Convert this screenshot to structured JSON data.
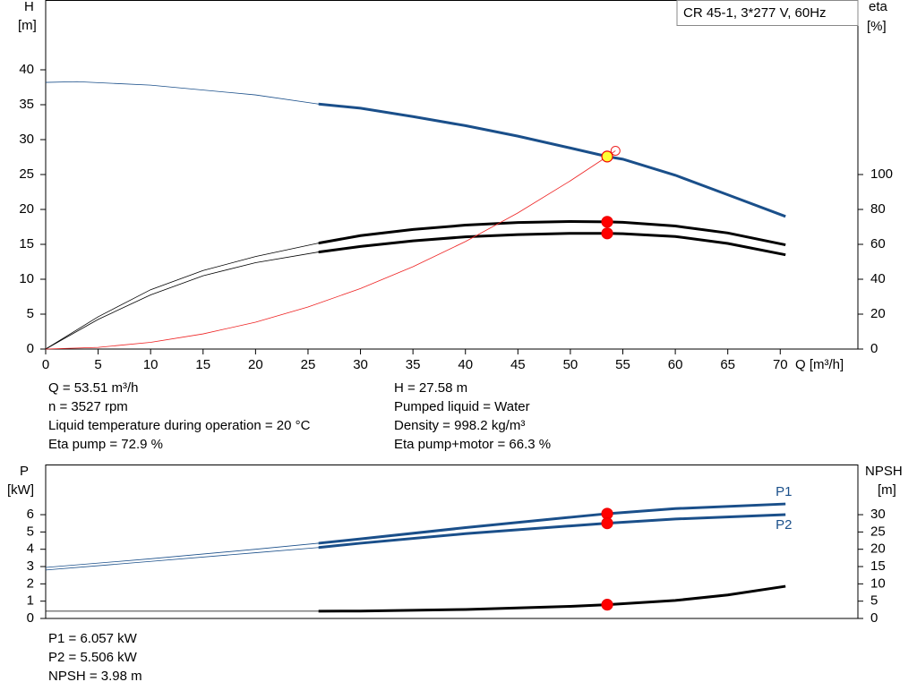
{
  "chart_data": [
    {
      "type": "line",
      "title": "CR 45-1, 3*277 V, 60Hz",
      "x_label": "Q [m³/h]",
      "y_label": [
        "H",
        "[m]"
      ],
      "y2_label": [
        "eta",
        "[%]"
      ],
      "xlim": [
        0,
        77.4
      ],
      "xticks": [
        0,
        5,
        10,
        15,
        20,
        25,
        30,
        35,
        40,
        45,
        50,
        55,
        60,
        65,
        70
      ],
      "ylim": [
        0,
        50
      ],
      "yticks": [
        0,
        5,
        10,
        15,
        20,
        25,
        30,
        35,
        40
      ],
      "y2lim": [
        0,
        200
      ],
      "y2ticks": [
        0,
        20,
        40,
        60,
        80,
        100
      ],
      "operating_range": [
        26,
        70.5
      ],
      "series": [
        {
          "color": "#1a4f8a",
          "x": [
            0,
            3,
            10,
            20,
            26,
            30,
            35,
            40,
            45,
            50,
            53.51,
            55,
            60,
            65,
            70.5
          ],
          "values": [
            38.2,
            38.3,
            37.8,
            36.4,
            35.1,
            34.5,
            33.3,
            32,
            30.5,
            28.8,
            27.58,
            27.2,
            24.9,
            22.1,
            19
          ]
        },
        {
          "color": "#000000",
          "axis": "y2",
          "x": [
            0,
            5,
            10,
            15,
            20,
            26,
            30,
            35,
            40,
            45,
            50,
            53.51,
            55,
            60,
            65,
            70.5
          ],
          "values": [
            0,
            18.5,
            34,
            45,
            53,
            60.7,
            65,
            68.5,
            71,
            72.5,
            73.1,
            72.9,
            72.6,
            70.5,
            66.5,
            59.7
          ]
        },
        {
          "color": "#000000",
          "axis": "y2",
          "x": [
            0,
            5,
            10,
            15,
            20,
            26,
            30,
            35,
            40,
            45,
            50,
            53.51,
            55,
            60,
            65,
            70.5
          ],
          "values": [
            0,
            17,
            31,
            42,
            49.5,
            55.6,
            58.8,
            62,
            64.3,
            65.6,
            66.3,
            66.3,
            66.1,
            64.5,
            60.5,
            54
          ]
        },
        {
          "color": "#ee2222",
          "thin": true,
          "end_marker": true,
          "x": [
            0,
            5,
            10,
            15,
            20,
            25,
            30,
            35,
            40,
            45,
            50,
            53.51,
            54.3
          ],
          "values": [
            0,
            0.24,
            0.96,
            2.17,
            3.85,
            6.02,
            8.67,
            11.8,
            15.4,
            19.5,
            24.1,
            27.58,
            28.4
          ]
        }
      ],
      "points": [
        {
          "x": 53.51,
          "y": 27.58,
          "color": "#ffff33"
        },
        {
          "x": 53.51,
          "y": 72.9,
          "axis": "y2",
          "color": "#ff0000"
        },
        {
          "x": 53.51,
          "y": 66.3,
          "axis": "y2",
          "color": "#ff0000"
        }
      ],
      "notes": [
        [
          "Q = 53.51 m³/h",
          "n = 3527 rpm",
          "Liquid temperature during operation = 20 °C",
          "Eta pump = 72.9 %"
        ],
        [
          "H = 27.58 m",
          "Pumped liquid = Water",
          "Density = 998.2 kg/m³",
          "Eta pump+motor = 66.3 %"
        ]
      ]
    },
    {
      "type": "line",
      "y_label": [
        "P",
        "[kW]"
      ],
      "y2_label": [
        "NPSH",
        "[m]"
      ],
      "xlim": [
        0,
        77.4
      ],
      "ylim": [
        0,
        8.9
      ],
      "yticks": [
        0,
        1,
        2,
        3,
        4,
        5,
        6
      ],
      "y2lim": [
        0,
        44.5
      ],
      "y2ticks": [
        0,
        5,
        10,
        15,
        20,
        25,
        30
      ],
      "operating_range": [
        26,
        70.5
      ],
      "series": [
        {
          "name": "P1",
          "color": "#1a4f8a",
          "x": [
            0,
            10,
            20,
            26,
            30,
            40,
            50,
            53.51,
            60,
            70.5
          ],
          "values": [
            2.95,
            3.45,
            4.0,
            4.35,
            4.6,
            5.25,
            5.85,
            6.057,
            6.35,
            6.62
          ]
        },
        {
          "name": "P2",
          "color": "#1a4f8a",
          "x": [
            0,
            10,
            20,
            26,
            30,
            40,
            50,
            53.51,
            60,
            70.5
          ],
          "values": [
            2.8,
            3.3,
            3.8,
            4.1,
            4.35,
            4.9,
            5.35,
            5.506,
            5.75,
            6.0
          ]
        },
        {
          "color": "#000000",
          "axis": "y2",
          "x": [
            0,
            26,
            30,
            40,
            50,
            53.51,
            60,
            65,
            70.5
          ],
          "values": [
            2.1,
            2.1,
            2.15,
            2.6,
            3.5,
            3.98,
            5.2,
            6.8,
            9.3
          ]
        }
      ],
      "points": [
        {
          "x": 53.51,
          "y": 6.057,
          "color": "#ff0000"
        },
        {
          "x": 53.51,
          "y": 5.506,
          "color": "#ff0000"
        },
        {
          "x": 53.51,
          "y": 3.98,
          "axis": "y2",
          "color": "#ff0000"
        }
      ],
      "notes": [
        [
          "P1 = 6.057 kW",
          "P2 = 5.506 kW",
          "NPSH = 3.98 m"
        ]
      ]
    }
  ]
}
